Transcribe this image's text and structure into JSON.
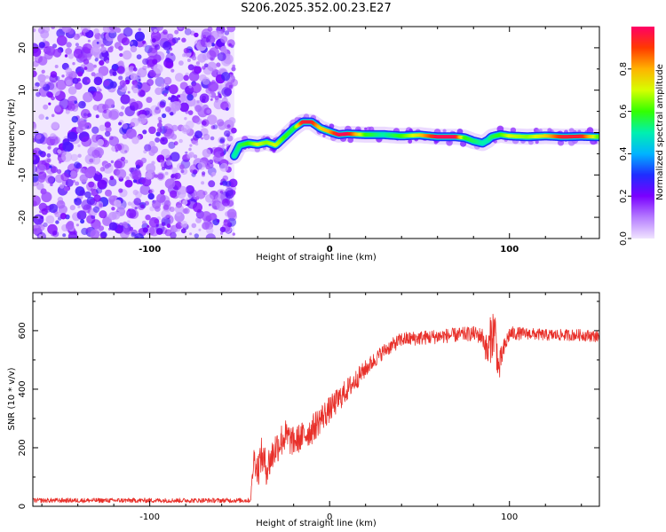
{
  "title": "S206.2025.352.00.23.E27",
  "colors": {
    "snr_line": "#e8302a",
    "noise_tint": "#8a2be2",
    "frame": "#000000"
  },
  "chart_data": [
    {
      "type": "heatmap",
      "name": "spectrogram",
      "title": "S206.2025.352.00.23.E27",
      "xlabel": "Height of straight line (km)",
      "ylabel": "Frequency (Hz)",
      "xlim": [
        -165,
        150
      ],
      "ylim": [
        -25,
        25
      ],
      "xticks": [
        -100,
        0,
        100
      ],
      "yticks": [
        -20,
        -10,
        0,
        10,
        20
      ],
      "colorbar": {
        "label": "Normalized spectral amplitude",
        "range": [
          0,
          1
        ],
        "ticks": [
          "0.0",
          "0.2",
          "0.4",
          "0.6",
          "0.8"
        ],
        "colormap": "rainbow"
      },
      "noise_region_x": [
        -165,
        -53
      ],
      "ridge": {
        "x": [
          -53,
          -50,
          -45,
          -40,
          -35,
          -30,
          -25,
          -20,
          -15,
          -10,
          -5,
          0,
          5,
          10,
          20,
          30,
          40,
          50,
          60,
          70,
          75,
          80,
          85,
          88,
          90,
          95,
          100,
          110,
          120,
          130,
          140,
          150
        ],
        "freq": [
          -5.5,
          -3,
          -2.5,
          -2.8,
          -2.3,
          -3,
          -1,
          1,
          2.5,
          2.5,
          1,
          0.2,
          -0.5,
          -0.3,
          -0.5,
          -0.5,
          -0.8,
          -0.6,
          -1,
          -1,
          -1.2,
          -2,
          -2.5,
          -1.8,
          -1,
          -0.5,
          -0.8,
          -1,
          -0.8,
          -1,
          -0.9,
          -1
        ],
        "amp": [
          0.5,
          0.55,
          0.6,
          0.7,
          0.65,
          0.7,
          0.6,
          0.55,
          0.95,
          0.95,
          0.75,
          0.8,
          0.98,
          0.98,
          0.6,
          0.5,
          0.6,
          0.75,
          0.98,
          0.98,
          0.6,
          0.55,
          0.5,
          0.5,
          0.55,
          0.6,
          0.7,
          0.65,
          0.75,
          0.95,
          0.95,
          0.6
        ]
      }
    },
    {
      "type": "line",
      "name": "snr",
      "xlabel": "Height of straight line (km)",
      "ylabel": "SNR (10 * v/v)",
      "xlim": [
        -165,
        150
      ],
      "ylim": [
        0,
        730
      ],
      "xticks": [
        -100,
        0,
        100
      ],
      "yticks": [
        0,
        200,
        400,
        600
      ],
      "series": [
        {
          "name": "SNR",
          "x": [
            -165,
            -150,
            -130,
            -110,
            -90,
            -70,
            -50,
            -44,
            -42,
            -40,
            -38,
            -35,
            -30,
            -25,
            -20,
            -15,
            -10,
            -5,
            0,
            10,
            20,
            30,
            40,
            50,
            60,
            70,
            80,
            85,
            88,
            90,
            92,
            94,
            96,
            100,
            110,
            120,
            130,
            140,
            150
          ],
          "y": [
            20,
            20,
            20,
            20,
            20,
            20,
            20,
            20,
            170,
            120,
            175,
            130,
            200,
            240,
            220,
            240,
            260,
            300,
            330,
            400,
            470,
            530,
            570,
            575,
            580,
            585,
            590,
            580,
            520,
            590,
            600,
            460,
            520,
            590,
            590,
            585,
            585,
            585,
            580
          ],
          "noise_amplitude": [
            8,
            8,
            8,
            8,
            8,
            8,
            8,
            8,
            40,
            60,
            60,
            60,
            60,
            60,
            50,
            50,
            50,
            50,
            45,
            40,
            30,
            25,
            25,
            25,
            25,
            25,
            25,
            30,
            60,
            90,
            80,
            60,
            40,
            25,
            20,
            20,
            20,
            20,
            20
          ]
        }
      ]
    }
  ]
}
